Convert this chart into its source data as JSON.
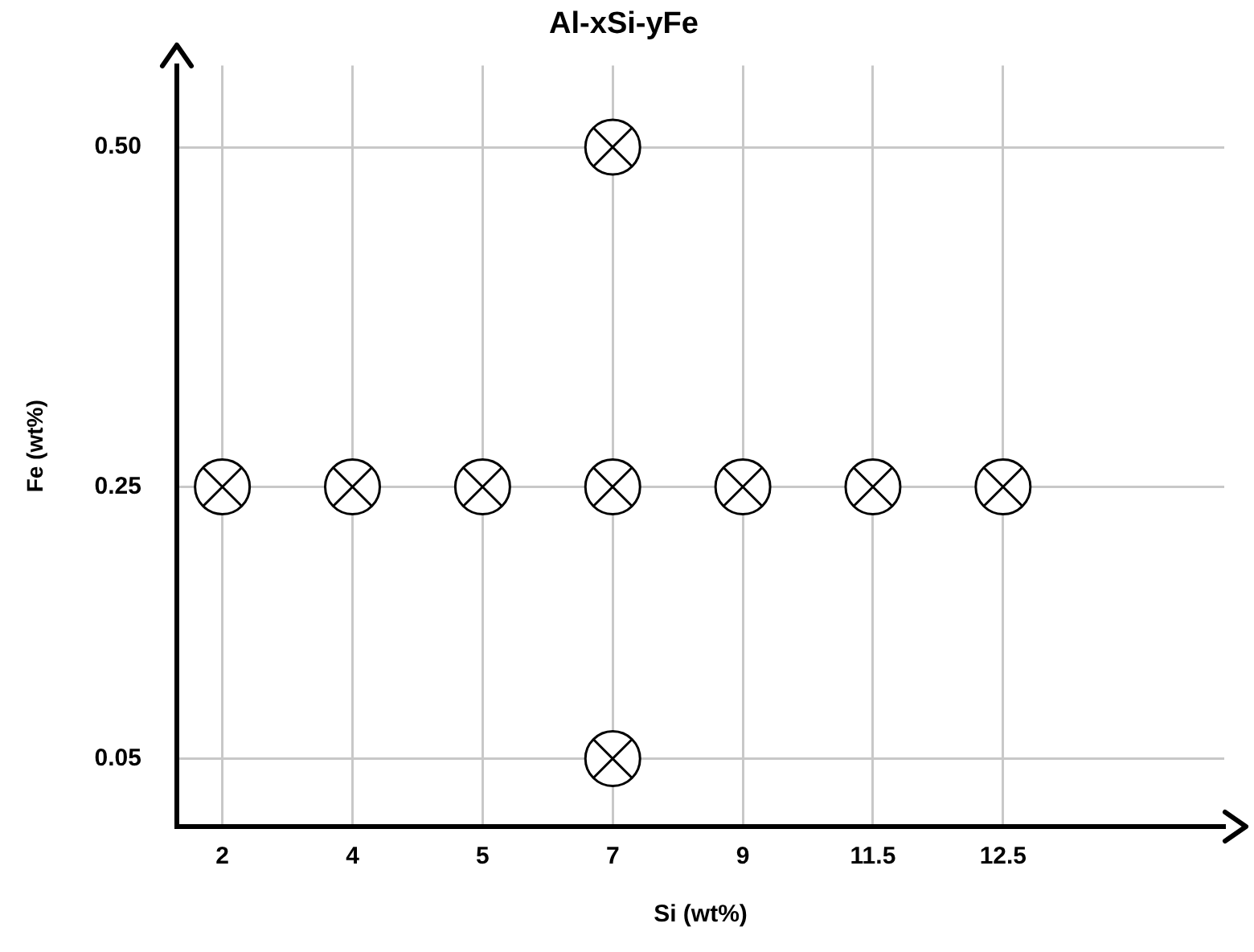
{
  "chart_data": {
    "type": "scatter",
    "title": "Al-xSi-yFe",
    "xlabel": "Si (wt%)",
    "ylabel": "Fe (wt%)",
    "categories": [
      "2",
      "4",
      "5",
      "7",
      "9",
      "11.5",
      "12.5"
    ],
    "ylim": [
      0,
      0.56
    ],
    "yticks": [
      0.05,
      0.25,
      {
        "value": 0.5,
        "label": "0.50"
      }
    ],
    "series": [
      {
        "color": "#000000",
        "x": [
          "2",
          "4",
          "5",
          "7",
          "9",
          "11.5",
          "12.5",
          "7",
          "7"
        ],
        "values": [
          0.25,
          0.25,
          0.25,
          0.25,
          0.25,
          0.25,
          0.25,
          0.5,
          0.05
        ]
      }
    ],
    "marker": "circle",
    "grid": true,
    "legend": false
  }
}
